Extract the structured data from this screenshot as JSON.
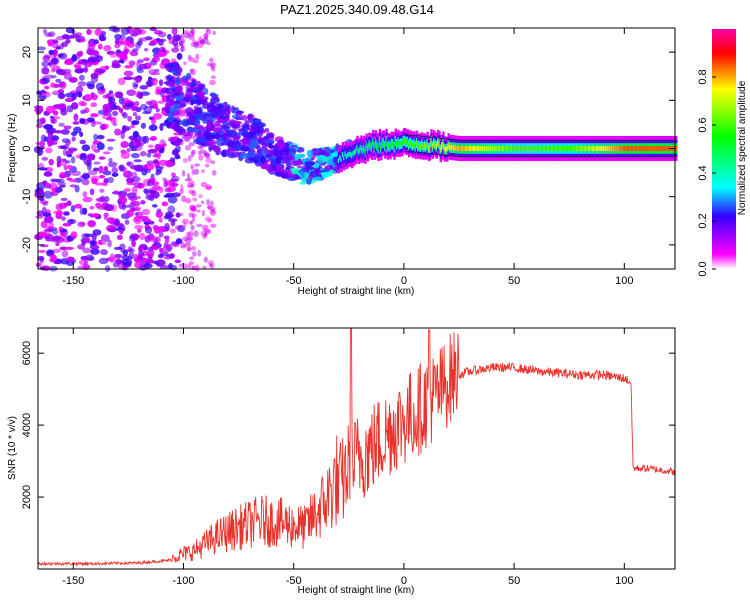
{
  "chart_data": [
    {
      "type": "heatmap",
      "title": "PAZ1.2025.340.09.48.G14",
      "xlabel": "Height of straight line (km)",
      "ylabel": "Frequency (Hz)",
      "xlim": [
        -166,
        123
      ],
      "ylim": [
        -25,
        25
      ],
      "xticks": [
        -150,
        -100,
        -50,
        0,
        50,
        100
      ],
      "yticks": [
        -20,
        -10,
        0,
        10,
        20
      ],
      "colorbar": {
        "label": "Normalized spectral amplitude",
        "range": [
          0,
          1
        ],
        "ticks": [
          0.0,
          0.2,
          0.4,
          0.6,
          0.8
        ],
        "colors": [
          "#ffffff",
          "#ff00ff",
          "#0000ff",
          "#00ffff",
          "#00ff00",
          "#ffff00",
          "#ff0000",
          "#ff00ff"
        ]
      },
      "ridge": {
        "description": "dominant frequency track",
        "x": [
          -105,
          -95,
          -85,
          -75,
          -65,
          -55,
          -45,
          -35,
          -25,
          -15,
          -5,
          5,
          15,
          25,
          50,
          75,
          100,
          123
        ],
        "y": [
          11,
          8,
          5,
          3,
          1,
          -2,
          -4,
          -3,
          -1,
          0.5,
          1,
          1,
          0.5,
          0,
          0,
          0,
          0,
          0
        ],
        "amplitude": [
          0.2,
          0.22,
          0.25,
          0.28,
          0.3,
          0.32,
          0.35,
          0.35,
          0.4,
          0.5,
          0.55,
          0.6,
          0.7,
          0.8,
          0.6,
          0.6,
          0.85,
          0.85
        ]
      }
    },
    {
      "type": "line",
      "title": "",
      "xlabel": "Height of straight line (km)",
      "ylabel": "SNR (10 * v/v)",
      "xlim": [
        -166,
        123
      ],
      "ylim": [
        0,
        6700
      ],
      "xticks": [
        -150,
        -100,
        -50,
        0,
        50,
        100
      ],
      "yticks": [
        2000,
        4000,
        6000
      ],
      "color": "#e8332c",
      "series": [
        {
          "name": "SNR",
          "x": [
            -166,
            -140,
            -120,
            -105,
            -95,
            -85,
            -75,
            -65,
            -55,
            -45,
            -35,
            -30,
            -25,
            -20,
            -15,
            -10,
            -5,
            0,
            5,
            10,
            15,
            20,
            25,
            30,
            40,
            50,
            60,
            70,
            80,
            90,
            100,
            103,
            104,
            110,
            123
          ],
          "y": [
            150,
            150,
            170,
            250,
            400,
            700,
            900,
            1050,
            1000,
            900,
            1500,
            2000,
            2700,
            3000,
            3200,
            3500,
            3800,
            4000,
            4200,
            4500,
            4700,
            5100,
            5400,
            5500,
            5600,
            5600,
            5500,
            5450,
            5400,
            5400,
            5300,
            5200,
            2800,
            2800,
            2700
          ]
        }
      ]
    }
  ]
}
